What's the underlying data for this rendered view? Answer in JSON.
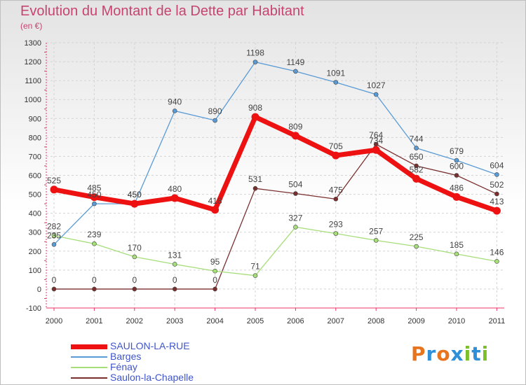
{
  "title": "Evolution du Montant de la Dette par Habitant",
  "subtitle": "(en €)",
  "logo": {
    "text": "Proxiti",
    "colors": [
      "#e8741e",
      "#2f8fd8",
      "#e8741e",
      "#2f8fd8",
      "#7cbf2a",
      "#2f8fd8",
      "#7cbf2a"
    ]
  },
  "chart_data": {
    "type": "line",
    "title": "Evolution du Montant de la Dette par Habitant",
    "subtitle": "(en €)",
    "xlabel": "",
    "ylabel": "",
    "categories": [
      "2000",
      "2001",
      "2002",
      "2003",
      "2004",
      "2005",
      "2006",
      "2007",
      "2008",
      "2009",
      "2010",
      "2011"
    ],
    "ylim": [
      -100,
      1300
    ],
    "yticks": [
      -100,
      0,
      100,
      200,
      300,
      400,
      500,
      600,
      700,
      800,
      900,
      1000,
      1100,
      1200,
      1300
    ],
    "ytick_labels": [
      "-100",
      "0",
      "100",
      "200",
      "300",
      "400",
      "500",
      "600",
      "700",
      "800",
      "900",
      "1000",
      "1100",
      "1200",
      "1300"
    ],
    "grid": true,
    "legend_position": "bottom-left",
    "series": [
      {
        "name": "SAULON-LA-RUE",
        "color": "#ee1111",
        "label_color": "#3355cc",
        "values": [
          525,
          485,
          450,
          480,
          418,
          908,
          809,
          705,
          734,
          582,
          486,
          413
        ],
        "labels": [
          "525",
          "485",
          "450",
          "480",
          "418",
          "908",
          "809",
          "705",
          "734",
          "582",
          "486",
          "413"
        ]
      },
      {
        "name": "Barges",
        "color": "#5a9bd5",
        "label_color": "#3f6fb5",
        "values": [
          235,
          450,
          450,
          940,
          890,
          1198,
          1149,
          1091,
          1027,
          744,
          679,
          604
        ],
        "labels": [
          "235",
          "450",
          "450",
          "940",
          "890",
          "1198",
          "1149",
          "1091",
          "1027",
          "744",
          "679",
          "604"
        ]
      },
      {
        "name": "Fénay",
        "color": "#a6de7a",
        "label_color": "#5fae3c",
        "values": [
          282,
          239,
          170,
          131,
          95,
          71,
          327,
          293,
          257,
          225,
          185,
          146
        ],
        "labels": [
          "282",
          "239",
          "170",
          "131",
          "95",
          "71",
          "327",
          "293",
          "257",
          "225",
          "185",
          "146"
        ]
      },
      {
        "name": "Saulon-la-Chapelle",
        "color": "#7a2f2f",
        "label_color": "#7a2f2f",
        "values": [
          0,
          0,
          0,
          0,
          0,
          531,
          504,
          475,
          764,
          650,
          600,
          502
        ],
        "labels": [
          "0",
          "0",
          "0",
          "0",
          "0",
          "531",
          "504",
          "475",
          "764",
          "650",
          "600",
          "502"
        ]
      }
    ]
  }
}
